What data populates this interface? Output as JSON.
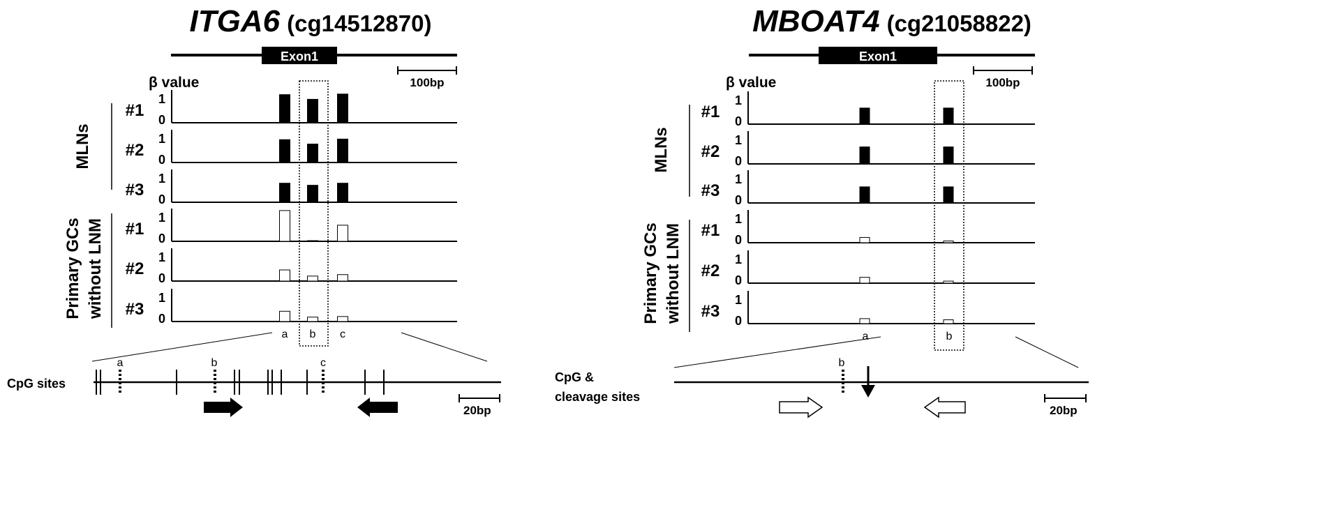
{
  "panels": [
    {
      "gene": "ITGA6",
      "probe": "(cg14512870)",
      "exon_label": "Exon1",
      "scale_label": "100bp",
      "beta_label": "β value",
      "group_labels": [
        "MLNs",
        "Primary GCs",
        "without LNM"
      ],
      "rows": [
        {
          "label": "#1",
          "tick_top": "1",
          "tick_bottom": "0",
          "fill": "#000000",
          "values": [
            0.96,
            0.8,
            0.98
          ]
        },
        {
          "label": "#2",
          "tick_top": "1",
          "tick_bottom": "0",
          "fill": "#000000",
          "values": [
            0.78,
            0.63,
            0.8
          ]
        },
        {
          "label": "#3",
          "tick_top": "1",
          "tick_bottom": "0",
          "fill": "#000000",
          "values": [
            0.65,
            0.58,
            0.65
          ]
        },
        {
          "label": "#1",
          "tick_top": "1",
          "tick_bottom": "0",
          "fill": "#ffffff",
          "values": [
            1.05,
            0.02,
            0.55
          ]
        },
        {
          "label": "#2",
          "tick_top": "1",
          "tick_bottom": "0",
          "fill": "#ffffff",
          "values": [
            0.38,
            0.17,
            0.22
          ]
        },
        {
          "label": "#3",
          "tick_top": "1",
          "tick_bottom": "0",
          "fill": "#ffffff",
          "values": [
            0.35,
            0.15,
            0.17
          ]
        }
      ],
      "site_letters": [
        "a",
        "b",
        "c"
      ],
      "bottom_label": [
        "CpG sites"
      ],
      "bottom_scale": "20bp"
    },
    {
      "gene": "MBOAT4",
      "probe": "(cg21058822)",
      "exon_label": "Exon1",
      "scale_label": "100bp",
      "beta_label": "β value",
      "group_labels": [
        "MLNs",
        "Primary GCs",
        "without LNM"
      ],
      "rows": [
        {
          "label": "#1",
          "tick_top": "1",
          "tick_bottom": "0",
          "fill": "#000000",
          "values": [
            0.55,
            0.55
          ]
        },
        {
          "label": "#2",
          "tick_top": "1",
          "tick_bottom": "0",
          "fill": "#000000",
          "values": [
            0.58,
            0.58
          ]
        },
        {
          "label": "#3",
          "tick_top": "1",
          "tick_bottom": "0",
          "fill": "#000000",
          "values": [
            0.55,
            0.55
          ]
        },
        {
          "label": "#1",
          "tick_top": "1",
          "tick_bottom": "0",
          "fill": "#ffffff",
          "values": [
            0.18,
            0.06
          ]
        },
        {
          "label": "#2",
          "tick_top": "1",
          "tick_bottom": "0",
          "fill": "#ffffff",
          "values": [
            0.2,
            0.07
          ]
        },
        {
          "label": "#3",
          "tick_top": "1",
          "tick_bottom": "0",
          "fill": "#ffffff",
          "values": [
            0.17,
            0.13
          ]
        }
      ],
      "site_letters": [
        "a",
        "b"
      ],
      "bottom_label": [
        "CpG &",
        "cleavage sites"
      ],
      "bottom_scale": "20bp"
    }
  ],
  "bottom_letters_left": [
    "a",
    "b",
    "c"
  ],
  "bottom_letters_right": [
    "b"
  ]
}
